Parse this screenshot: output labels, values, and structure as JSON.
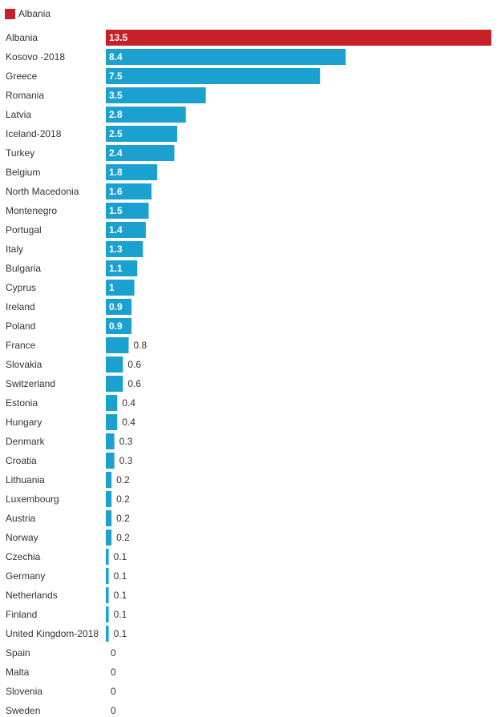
{
  "legend": {
    "label": "Albania",
    "color": "#c62127"
  },
  "chart_data": {
    "type": "bar",
    "orientation": "horizontal",
    "title": "",
    "xlabel": "",
    "ylabel": "",
    "xlim": [
      0,
      13.5
    ],
    "grid": false,
    "legend_position": "top-left",
    "colors": {
      "highlight": "#c62127",
      "default": "#1aa1cf"
    },
    "highlight_category": "Albania",
    "categories": [
      "Albania",
      "Kosovo -2018",
      "Greece",
      "Romania",
      "Latvia",
      "Iceland-2018",
      "Turkey",
      "Belgium",
      "North Macedonia",
      "Montenegro",
      "Portugal",
      "Italy",
      "Bulgaria",
      "Cyprus",
      "Ireland",
      "Poland",
      "France",
      "Slovakia",
      "Switzerland",
      "Estonia",
      "Hungary",
      "Denmark",
      "Croatia",
      "Lithuania",
      "Luxembourg",
      "Austria",
      "Norway",
      "Czechia",
      "Germany",
      "Netherlands",
      "Finland",
      "United Kingdom-2018",
      "Spain",
      "Malta",
      "Slovenia",
      "Sweden"
    ],
    "values": [
      13.5,
      8.4,
      7.5,
      3.5,
      2.8,
      2.5,
      2.4,
      1.8,
      1.6,
      1.5,
      1.4,
      1.3,
      1.1,
      1,
      0.9,
      0.9,
      0.8,
      0.6,
      0.6,
      0.4,
      0.4,
      0.3,
      0.3,
      0.2,
      0.2,
      0.2,
      0.2,
      0.1,
      0.1,
      0.1,
      0.1,
      0.1,
      0,
      0,
      0,
      0
    ]
  }
}
